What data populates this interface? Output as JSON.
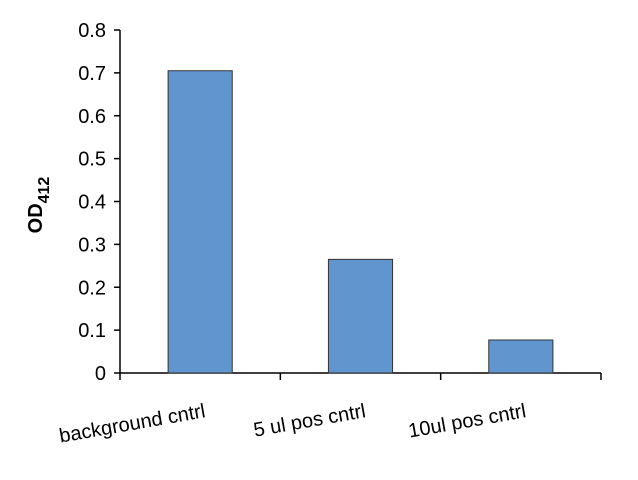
{
  "chart_data": {
    "type": "bar",
    "y_label": "OD",
    "y_label_subscript": "412",
    "categories": [
      "background cntrl",
      "5 ul pos cntrl",
      "10ul pos cntrl"
    ],
    "values": [
      0.705,
      0.265,
      0.077
    ],
    "color": "#6096cd",
    "ylim": [
      0,
      0.8
    ],
    "yticks": [
      0,
      0.1,
      0.2,
      0.3,
      0.4,
      0.5,
      0.6,
      0.7,
      0.8
    ],
    "grid": false
  }
}
